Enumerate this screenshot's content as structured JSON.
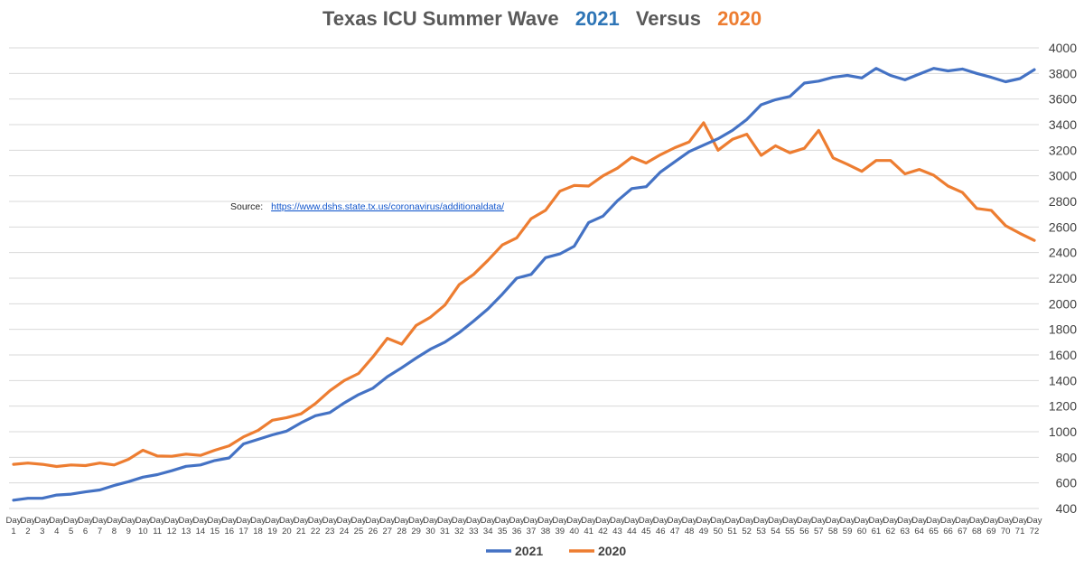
{
  "chart_data": {
    "type": "line",
    "title_parts": [
      {
        "text": "Texas ICU Summer Wave",
        "color": "#595959"
      },
      {
        "text": "2021",
        "color": "#2E75B6"
      },
      {
        "text": "Versus",
        "color": "#595959"
      },
      {
        "text": "2020",
        "color": "#ED7D31"
      }
    ],
    "x_prefix": "Day",
    "categories": [
      1,
      2,
      3,
      4,
      5,
      6,
      7,
      8,
      9,
      10,
      11,
      12,
      13,
      14,
      15,
      16,
      17,
      18,
      19,
      20,
      21,
      22,
      23,
      24,
      25,
      26,
      27,
      28,
      29,
      30,
      31,
      32,
      33,
      34,
      35,
      36,
      37,
      38,
      39,
      40,
      41,
      42,
      43,
      44,
      45,
      46,
      47,
      48,
      49,
      50,
      51,
      52,
      53,
      54,
      55,
      56,
      57,
      58,
      59,
      60,
      61,
      62,
      63,
      64,
      65,
      66,
      67,
      68,
      69,
      70,
      71,
      72
    ],
    "ylim": [
      400,
      4000
    ],
    "yticks": [
      400,
      600,
      800,
      1000,
      1200,
      1400,
      1600,
      1800,
      2000,
      2200,
      2400,
      2600,
      2800,
      3000,
      3200,
      3400,
      3600,
      3800,
      4000
    ],
    "grid": true,
    "y_axis_position": "right",
    "legend_position": "bottom",
    "series": [
      {
        "name": "2021",
        "color": "#4472C4",
        "values": [
          465,
          480,
          480,
          505,
          512,
          530,
          545,
          580,
          610,
          645,
          665,
          695,
          730,
          740,
          775,
          795,
          905,
          940,
          975,
          1005,
          1070,
          1125,
          1150,
          1225,
          1290,
          1340,
          1430,
          1500,
          1575,
          1645,
          1700,
          1775,
          1865,
          1960,
          2075,
          2200,
          2230,
          2360,
          2390,
          2450,
          2635,
          2685,
          2805,
          2900,
          2915,
          3030,
          3110,
          3190,
          3240,
          3290,
          3355,
          3440,
          3555,
          3595,
          3620,
          3725,
          3740,
          3770,
          3785,
          3765,
          3840,
          3785,
          3750,
          3795,
          3840,
          3820,
          3835,
          3800,
          3770,
          3735,
          3760,
          3830
        ]
      },
      {
        "name": "2020",
        "color": "#ED7D31",
        "values": [
          745,
          755,
          745,
          728,
          740,
          735,
          755,
          740,
          785,
          855,
          810,
          808,
          825,
          815,
          855,
          890,
          960,
          1010,
          1090,
          1110,
          1140,
          1220,
          1320,
          1400,
          1455,
          1585,
          1730,
          1685,
          1830,
          1895,
          1990,
          2150,
          2230,
          2340,
          2460,
          2515,
          2665,
          2730,
          2880,
          2925,
          2920,
          3000,
          3060,
          3145,
          3100,
          3165,
          3220,
          3265,
          3415,
          3200,
          3285,
          3325,
          3160,
          3235,
          3180,
          3215,
          3355,
          3140,
          3090,
          3035,
          3120,
          3120,
          3015,
          3050,
          3005,
          2920,
          2870,
          2745,
          2730,
          2610,
          2550,
          2495
        ]
      }
    ],
    "annotation": {
      "label": "Source:",
      "link": "https://www.dshs.state.tx.us/coronavirus/additionaldata/"
    }
  }
}
